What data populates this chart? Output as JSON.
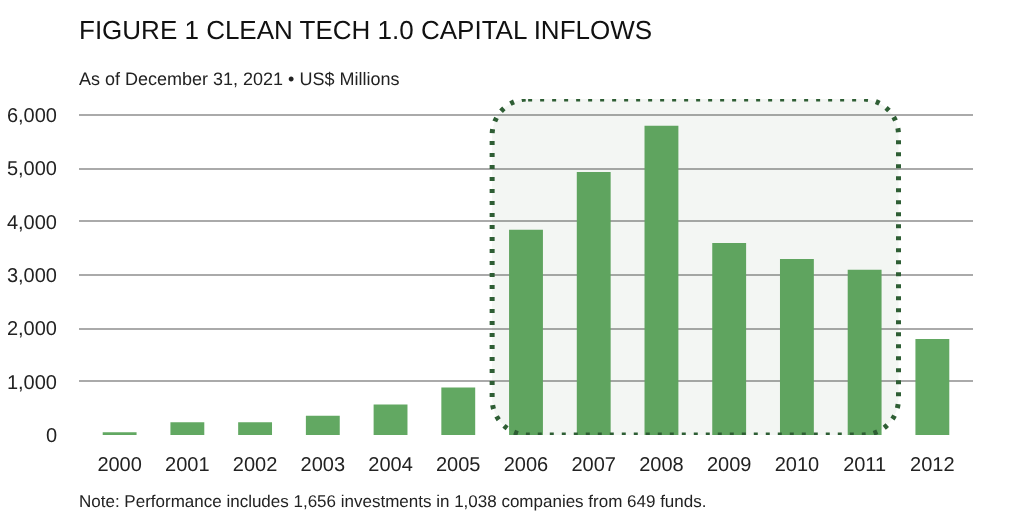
{
  "chart_data": {
    "type": "bar",
    "title": "FIGURE 1  CLEAN TECH 1.0 CAPITAL INFLOWS",
    "subtitle": "As of December 31, 2021 • US$ Millions",
    "categories": [
      "2000",
      "2001",
      "2002",
      "2003",
      "2004",
      "2005",
      "2006",
      "2007",
      "2008",
      "2009",
      "2010",
      "2011",
      "2012"
    ],
    "values": [
      50,
      240,
      240,
      360,
      570,
      890,
      3850,
      4930,
      5800,
      3600,
      3300,
      3100,
      1800
    ],
    "color": "#62a862",
    "ylim": [
      0,
      6300
    ],
    "yticks": [
      0,
      {
        "value": 1000,
        "label": "1,000"
      },
      {
        "value": 2000,
        "label": "2,000"
      },
      {
        "value": 3000,
        "label": "3,000"
      },
      {
        "value": 4000,
        "label": "4,000"
      },
      {
        "value": 5000,
        "label": "5,000"
      },
      {
        "value": 6000,
        "label": "6,000"
      }
    ],
    "grid": "y",
    "bands": [
      {
        "axis": "x",
        "from": "2006",
        "to": "2011",
        "color": "#2e5e34"
      }
    ],
    "annotations": [
      "Note: Performance includes 1,656 investments in 1,038 companies from 649 funds."
    ]
  }
}
